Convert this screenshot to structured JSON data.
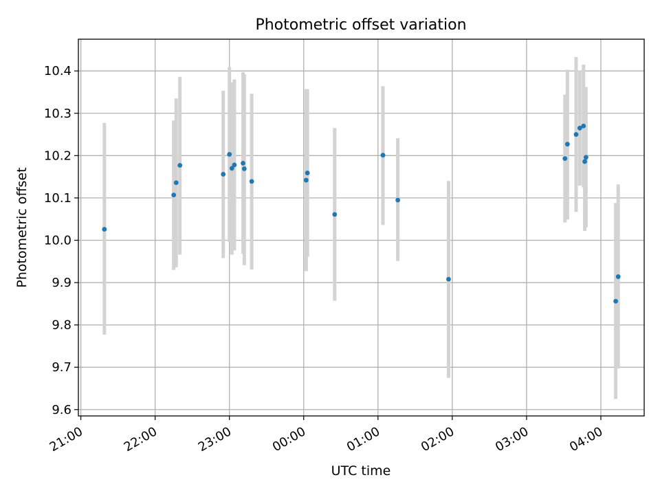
{
  "chart_data": {
    "type": "scatter",
    "title": "Photometric offset variation",
    "xlabel": "UTC time",
    "ylabel": "Photometric offset",
    "x_ticks": [
      "21:00",
      "22:00",
      "23:00",
      "00:00",
      "01:00",
      "02:00",
      "03:00",
      "04:00"
    ],
    "y_ticks": [
      "9.6",
      "9.7",
      "9.8",
      "9.9",
      "10.0",
      "10.1",
      "10.2",
      "10.3",
      "10.4"
    ],
    "xlim": [
      "20:58",
      "04:35"
    ],
    "ylim": [
      9.585,
      10.475
    ],
    "grid": true,
    "errorbar_color": "#d3d3d3",
    "marker_color": "#1f77b4",
    "points": [
      {
        "time": "21:19",
        "value": 10.026,
        "low": 9.777,
        "high": 10.277
      },
      {
        "time": "22:15",
        "value": 10.107,
        "low": 9.93,
        "high": 10.283
      },
      {
        "time": "22:17",
        "value": 10.136,
        "low": 9.936,
        "high": 10.335
      },
      {
        "time": "22:20",
        "value": 10.177,
        "low": 9.966,
        "high": 10.386
      },
      {
        "time": "22:55",
        "value": 10.156,
        "low": 9.958,
        "high": 10.353
      },
      {
        "time": "23:00",
        "value": 10.203,
        "low": 9.996,
        "high": 10.409
      },
      {
        "time": "23:02",
        "value": 10.17,
        "low": 9.966,
        "high": 10.373
      },
      {
        "time": "23:04",
        "value": 10.178,
        "low": 9.976,
        "high": 10.38
      },
      {
        "time": "23:11",
        "value": 10.182,
        "low": 9.968,
        "high": 10.397
      },
      {
        "time": "23:12",
        "value": 10.169,
        "low": 9.941,
        "high": 10.392
      },
      {
        "time": "23:18",
        "value": 10.139,
        "low": 9.931,
        "high": 10.346
      },
      {
        "time": "00:02",
        "value": 10.142,
        "low": 9.927,
        "high": 10.357
      },
      {
        "time": "00:03",
        "value": 10.159,
        "low": 9.961,
        "high": 10.357
      },
      {
        "time": "00:25",
        "value": 10.061,
        "low": 9.857,
        "high": 10.265
      },
      {
        "time": "01:04",
        "value": 10.201,
        "low": 10.036,
        "high": 10.364
      },
      {
        "time": "01:16",
        "value": 10.095,
        "low": 9.951,
        "high": 10.241
      },
      {
        "time": "01:57",
        "value": 9.908,
        "low": 9.675,
        "high": 10.14
      },
      {
        "time": "03:31",
        "value": 10.193,
        "low": 10.042,
        "high": 10.344
      },
      {
        "time": "03:33",
        "value": 10.227,
        "low": 10.049,
        "high": 10.403
      },
      {
        "time": "03:40",
        "value": 10.25,
        "low": 10.067,
        "high": 10.433
      },
      {
        "time": "03:43",
        "value": 10.265,
        "low": 10.129,
        "high": 10.401
      },
      {
        "time": "03:46",
        "value": 10.27,
        "low": 10.125,
        "high": 10.415
      },
      {
        "time": "03:47",
        "value": 10.186,
        "low": 10.022,
        "high": 10.362
      },
      {
        "time": "03:48",
        "value": 10.196,
        "low": 10.03,
        "high": 10.362
      },
      {
        "time": "04:12",
        "value": 9.856,
        "low": 9.625,
        "high": 10.088
      },
      {
        "time": "04:14",
        "value": 9.914,
        "low": 9.697,
        "high": 10.132
      }
    ]
  }
}
